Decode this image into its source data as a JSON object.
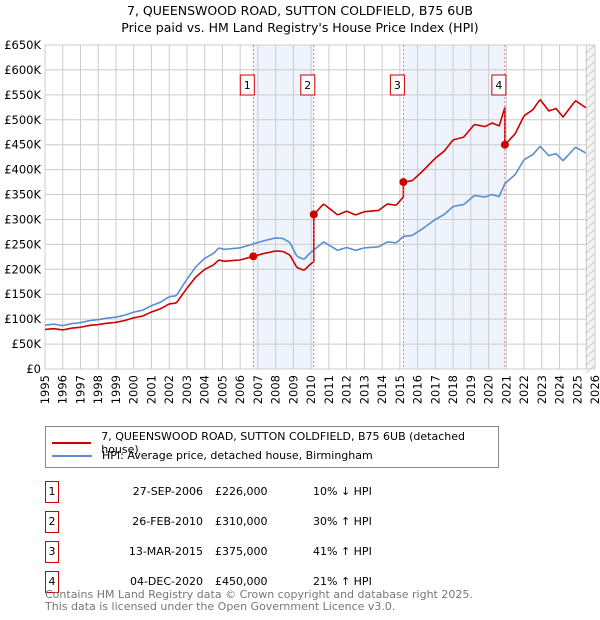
{
  "chart_data": {
    "type": "line",
    "title": "7, QUEENSWOOD ROAD, SUTTON COLDFIELD, B75 6UB",
    "subtitle": "Price paid vs. HM Land Registry's House Price Index (HPI)",
    "xlim": [
      1995,
      2026
    ],
    "ylim": [
      0,
      650000
    ],
    "x_ticks": [
      "1995",
      "1996",
      "1997",
      "1998",
      "1999",
      "2000",
      "2001",
      "2002",
      "2003",
      "2004",
      "2005",
      "2006",
      "2007",
      "2008",
      "2009",
      "2010",
      "2011",
      "2012",
      "2013",
      "2014",
      "2015",
      "2016",
      "2017",
      "2018",
      "2019",
      "2020",
      "2021",
      "2022",
      "2023",
      "2024",
      "2025",
      "2026"
    ],
    "y_ticks": [
      "£0",
      "£50K",
      "£100K",
      "£150K",
      "£200K",
      "£250K",
      "£300K",
      "£350K",
      "£400K",
      "£450K",
      "£500K",
      "£550K",
      "£600K",
      "£650K"
    ],
    "grid": true,
    "hpi_series": {
      "name": "HPI: Average price, detached house, Birmingham",
      "color": "#5b8dd0",
      "x": [
        1995,
        1995.5,
        1996,
        1996.5,
        1997,
        1997.5,
        1998,
        1998.5,
        1999,
        1999.5,
        2000,
        2000.5,
        2001,
        2001.5,
        2002,
        2002.4,
        2003,
        2003.5,
        2004,
        2004.5,
        2004.8,
        2005.1,
        2006,
        2006.74,
        2007.3,
        2008,
        2008.4,
        2008.8,
        2009.2,
        2009.6,
        2010,
        2010.2,
        2010.7,
        2011.5,
        2012,
        2012.5,
        2013,
        2013.8,
        2014.3,
        2014.8,
        2015.2,
        2015.7,
        2016.3,
        2017,
        2017.5,
        2018,
        2018.6,
        2019.2,
        2019.8,
        2020.2,
        2020.6,
        2020.92,
        2021.5,
        2022,
        2022.5,
        2022.9,
        2023.4,
        2023.8,
        2024.2,
        2024.9,
        2025.5
      ],
      "y": [
        88,
        90,
        87,
        91,
        93,
        97,
        99,
        102,
        104,
        108,
        114,
        118,
        127,
        134,
        145,
        147,
        180,
        205,
        222,
        232,
        243,
        240,
        243,
        251,
        257,
        263,
        262,
        254,
        226,
        220,
        235,
        240,
        255,
        238,
        244,
        238,
        243,
        245,
        255,
        253,
        266,
        268,
        282,
        300,
        310,
        326,
        330,
        348,
        345,
        350,
        346,
        372,
        390,
        420,
        430,
        447,
        428,
        432,
        418,
        445,
        433
      ]
    },
    "price_series": {
      "name": "7, QUEENSWOOD ROAD, SUTTON COLDFIELD, B75 6UB (detached house)",
      "color": "#cc0000"
    },
    "sales": [
      {
        "id": "1",
        "x": 2006.74,
        "date": "27-SEP-2006",
        "price": 226000,
        "price_label": "£226,000",
        "hpi_label": "10% ↓ HPI"
      },
      {
        "id": "2",
        "x": 2010.15,
        "date": "26-FEB-2010",
        "price": 310000,
        "price_label": "£310,000",
        "hpi_label": "30% ↑ HPI"
      },
      {
        "id": "3",
        "x": 2015.2,
        "date": "13-MAR-2015",
        "price": 375000,
        "price_label": "£375,000",
        "hpi_label": "41% ↑ HPI"
      },
      {
        "id": "4",
        "x": 2020.92,
        "date": "04-DEC-2020",
        "price": 450000,
        "price_label": "£450,000",
        "hpi_label": "21% ↑ HPI"
      }
    ],
    "shaded_ranges": [
      [
        2006.74,
        2010.15
      ],
      [
        2015.2,
        2020.92
      ]
    ],
    "forecast_hatch_from": 2025.5
  },
  "footer": [
    "Contains HM Land Registry data © Crown copyright and database right 2025.",
    "This data is licensed under the Open Government Licence v3.0."
  ]
}
